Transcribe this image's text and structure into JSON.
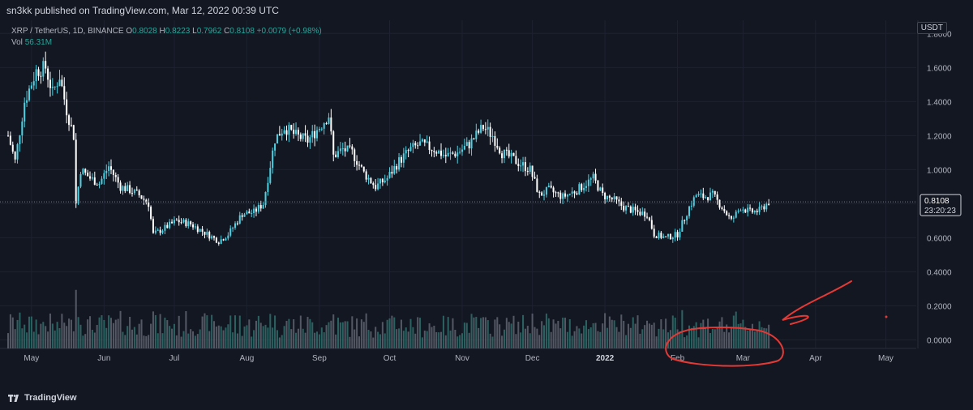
{
  "header": {
    "published_text": "sn3kk published on TradingView.com, Mar 12, 2022 00:39 UTC"
  },
  "legend": {
    "symbol": "XRP / TetherUS, 1D, BINANCE",
    "o_key": "O",
    "o_val": "0.8028",
    "h_key": "H",
    "h_val": "0.8223",
    "l_key": "L",
    "l_val": "0.7962",
    "c_key": "C",
    "c_val": "0.8108",
    "change": "+0.0079 (+0.98%)",
    "vol_key": "Vol",
    "vol_val": "56.31M"
  },
  "currency_badge": "USDT",
  "price_tag": {
    "price": "0.8108",
    "countdown": "23:20:23"
  },
  "footer": {
    "logo_text": "TradingView"
  },
  "colors": {
    "background": "#131722",
    "up": "#26a69a",
    "down": "#ef5350",
    "up_candle": "#4dd0e1",
    "down_candle": "#ffffff",
    "grid": "#1e2230",
    "axis_text": "#b2b5be",
    "annotation": "#e53935"
  },
  "chart_data": {
    "type": "candlestick",
    "title": "",
    "y_axis_ticks": [
      1.8,
      1.6,
      1.4,
      1.2,
      1.0,
      0.8,
      0.6,
      0.4,
      0.2,
      0.0
    ],
    "y_axis_tick_labels": [
      "1.8000",
      "1.6000",
      "1.4000",
      "1.2000",
      "1.0000",
      "0.8000",
      "0.6000",
      "0.4000",
      "0.2000",
      "0.0000"
    ],
    "ylim": [
      -0.05,
      1.83
    ],
    "x_axis_labels": [
      "May",
      "Jun",
      "Jul",
      "Aug",
      "Sep",
      "Oct",
      "Nov",
      "Dec",
      "2022",
      "Feb",
      "Mar",
      "Apr",
      "May"
    ],
    "x_axis_dates": [
      "2021-05-01",
      "2021-06-01",
      "2021-07-01",
      "2021-08-01",
      "2021-09-01",
      "2021-10-01",
      "2021-11-01",
      "2021-12-01",
      "2022-01-01",
      "2022-02-01",
      "2022-03-01",
      "2022-04-01",
      "2022-05-01"
    ],
    "xlim": [
      "2021-04-21",
      "2022-05-14"
    ],
    "last_price": 0.8108,
    "closes": [
      [
        "2021-04-21",
        1.2
      ],
      [
        "2021-04-24",
        1.05
      ],
      [
        "2021-04-28",
        1.4
      ],
      [
        "2021-05-03",
        1.58
      ],
      [
        "2021-05-07",
        1.6
      ],
      [
        "2021-05-10",
        1.45
      ],
      [
        "2021-05-13",
        1.55
      ],
      [
        "2021-05-16",
        1.35
      ],
      [
        "2021-05-19",
        1.2
      ],
      [
        "2021-05-20",
        0.8
      ],
      [
        "2021-05-22",
        1.0
      ],
      [
        "2021-05-26",
        0.95
      ],
      [
        "2021-05-30",
        0.92
      ],
      [
        "2021-06-03",
        1.02
      ],
      [
        "2021-06-08",
        0.9
      ],
      [
        "2021-06-12",
        0.88
      ],
      [
        "2021-06-16",
        0.85
      ],
      [
        "2021-06-20",
        0.8
      ],
      [
        "2021-06-22",
        0.62
      ],
      [
        "2021-06-26",
        0.65
      ],
      [
        "2021-07-02",
        0.7
      ],
      [
        "2021-07-08",
        0.68
      ],
      [
        "2021-07-14",
        0.63
      ],
      [
        "2021-07-20",
        0.58
      ],
      [
        "2021-07-24",
        0.62
      ],
      [
        "2021-07-30",
        0.74
      ],
      [
        "2021-08-04",
        0.75
      ],
      [
        "2021-08-08",
        0.8
      ],
      [
        "2021-08-10",
        0.95
      ],
      [
        "2021-08-13",
        1.18
      ],
      [
        "2021-08-17",
        1.25
      ],
      [
        "2021-08-22",
        1.2
      ],
      [
        "2021-08-27",
        1.17
      ],
      [
        "2021-09-01",
        1.25
      ],
      [
        "2021-09-05",
        1.32
      ],
      [
        "2021-09-07",
        1.08
      ],
      [
        "2021-09-11",
        1.12
      ],
      [
        "2021-09-15",
        1.1
      ],
      [
        "2021-09-20",
        0.98
      ],
      [
        "2021-09-25",
        0.9
      ],
      [
        "2021-09-30",
        0.95
      ],
      [
        "2021-10-05",
        1.05
      ],
      [
        "2021-10-10",
        1.12
      ],
      [
        "2021-10-14",
        1.15
      ],
      [
        "2021-10-20",
        1.12
      ],
      [
        "2021-10-25",
        1.08
      ],
      [
        "2021-10-30",
        1.1
      ],
      [
        "2021-11-04",
        1.15
      ],
      [
        "2021-11-08",
        1.22
      ],
      [
        "2021-11-10",
        1.25
      ],
      [
        "2021-11-14",
        1.2
      ],
      [
        "2021-11-18",
        1.1
      ],
      [
        "2021-11-24",
        1.05
      ],
      [
        "2021-11-30",
        1.0
      ],
      [
        "2021-12-04",
        0.85
      ],
      [
        "2021-12-08",
        0.88
      ],
      [
        "2021-12-14",
        0.84
      ],
      [
        "2021-12-20",
        0.88
      ],
      [
        "2021-12-27",
        0.95
      ],
      [
        "2021-12-31",
        0.85
      ],
      [
        "2022-01-05",
        0.82
      ],
      [
        "2022-01-09",
        0.78
      ],
      [
        "2022-01-15",
        0.75
      ],
      [
        "2022-01-19",
        0.74
      ],
      [
        "2022-01-22",
        0.62
      ],
      [
        "2022-01-27",
        0.6
      ],
      [
        "2022-02-01",
        0.62
      ],
      [
        "2022-02-06",
        0.78
      ],
      [
        "2022-02-09",
        0.85
      ],
      [
        "2022-02-12",
        0.84
      ],
      [
        "2022-02-16",
        0.85
      ],
      [
        "2022-02-20",
        0.78
      ],
      [
        "2022-02-24",
        0.7
      ],
      [
        "2022-02-28",
        0.78
      ],
      [
        "2022-03-04",
        0.75
      ],
      [
        "2022-03-08",
        0.76
      ],
      [
        "2022-03-12",
        0.81
      ]
    ]
  }
}
